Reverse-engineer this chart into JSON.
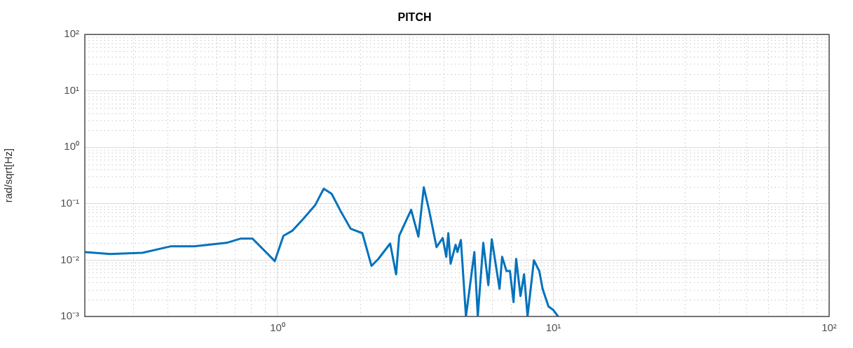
{
  "chart_data": {
    "type": "line",
    "title": "PITCH",
    "ylabel": "rad/sqrt[Hz]",
    "log": "xy",
    "grid": true,
    "legend": false,
    "marker": "none",
    "line_style": "solid",
    "xlim": [
      0.2,
      100
    ],
    "xticks": [
      {
        "value": 1,
        "label": "10⁰"
      },
      {
        "value": 10,
        "label": "10¹"
      },
      {
        "value": 100,
        "label": "10²"
      }
    ],
    "ylim": [
      0.001,
      100
    ],
    "yticks": [
      {
        "value": 0.001,
        "label": "10⁻³"
      },
      {
        "value": 0.01,
        "label": "10⁻²"
      },
      {
        "value": 0.1,
        "label": "10⁻¹"
      },
      {
        "value": 1,
        "label": "10⁰"
      },
      {
        "value": 10,
        "label": "10¹"
      },
      {
        "value": 100,
        "label": "10²"
      }
    ],
    "series": [
      {
        "color": "#0072bd",
        "x": [
          0.2,
          0.247,
          0.324,
          0.409,
          0.499,
          0.653,
          0.733,
          0.811,
          0.977,
          1.05,
          1.13,
          1.24,
          1.37,
          1.47,
          1.57,
          1.7,
          1.84,
          2.03,
          2.19,
          2.32,
          2.56,
          2.69,
          2.76,
          3.05,
          3.24,
          3.39,
          3.54,
          3.77,
          3.97,
          4.09,
          4.16,
          4.24,
          4.42,
          4.49,
          4.62,
          4.82,
          5.17,
          5.32,
          5.57,
          5.81,
          5.98,
          6.38,
          6.52,
          6.76,
          6.96,
          7.17,
          7.33,
          7.6,
          7.83,
          8.06,
          8.5,
          8.89,
          9.14,
          9.6,
          10,
          10.4
        ],
        "values": [
          0.0139,
          0.0128,
          0.0135,
          0.0175,
          0.0175,
          0.0202,
          0.024,
          0.024,
          0.0096,
          0.027,
          0.033,
          0.054,
          0.095,
          0.184,
          0.15,
          0.071,
          0.036,
          0.03,
          0.0079,
          0.0105,
          0.0197,
          0.0056,
          0.027,
          0.078,
          0.026,
          0.195,
          0.078,
          0.017,
          0.0246,
          0.0114,
          0.03,
          0.0086,
          0.0186,
          0.0139,
          0.0227,
          0.001,
          0.0139,
          0.001,
          0.0202,
          0.0036,
          0.0233,
          0.0031,
          0.0114,
          0.0064,
          0.0064,
          0.0018,
          0.0105,
          0.0023,
          0.0056,
          0.001,
          0.0099,
          0.0064,
          0.0031,
          0.0015,
          0.0013,
          0.001
        ]
      }
    ]
  }
}
